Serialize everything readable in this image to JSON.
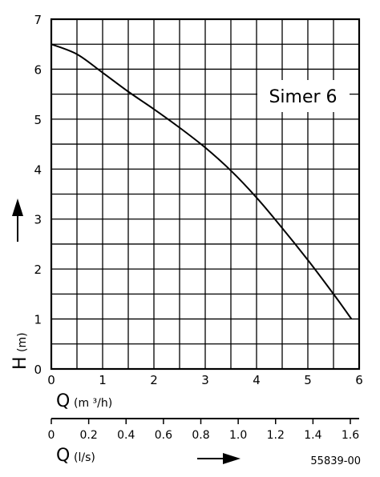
{
  "chart_data": {
    "type": "line",
    "title": "Simer 6",
    "xlabel": "Q",
    "xlabel_unit": "(m ³/h)",
    "ylabel": "H",
    "ylabel_unit": "(m)",
    "x2label": "Q",
    "x2label_unit": "(l/s)",
    "code": "55839-00",
    "xlim": [
      0,
      6
    ],
    "ylim": [
      0,
      7
    ],
    "x2lim": [
      0,
      1.6
    ],
    "x_ticks": [
      0,
      1,
      2,
      3,
      4,
      5,
      6
    ],
    "y_ticks": [
      0,
      1,
      2,
      3,
      4,
      5,
      6,
      7
    ],
    "x2_ticks": [
      "0",
      "0.2",
      "0.4",
      "0.6",
      "0.8",
      "1.0",
      "1.2",
      "1.4",
      "1.6"
    ],
    "grid": true,
    "series": [
      {
        "x": [
          0,
          0.5,
          1.0,
          1.5,
          2.0,
          2.5,
          3.0,
          3.5,
          4.0,
          4.5,
          5.0,
          5.5,
          5.85
        ],
        "values": [
          6.5,
          6.3,
          5.93,
          5.55,
          5.2,
          4.83,
          4.43,
          3.97,
          3.43,
          2.82,
          2.18,
          1.5,
          1.0
        ]
      }
    ]
  }
}
